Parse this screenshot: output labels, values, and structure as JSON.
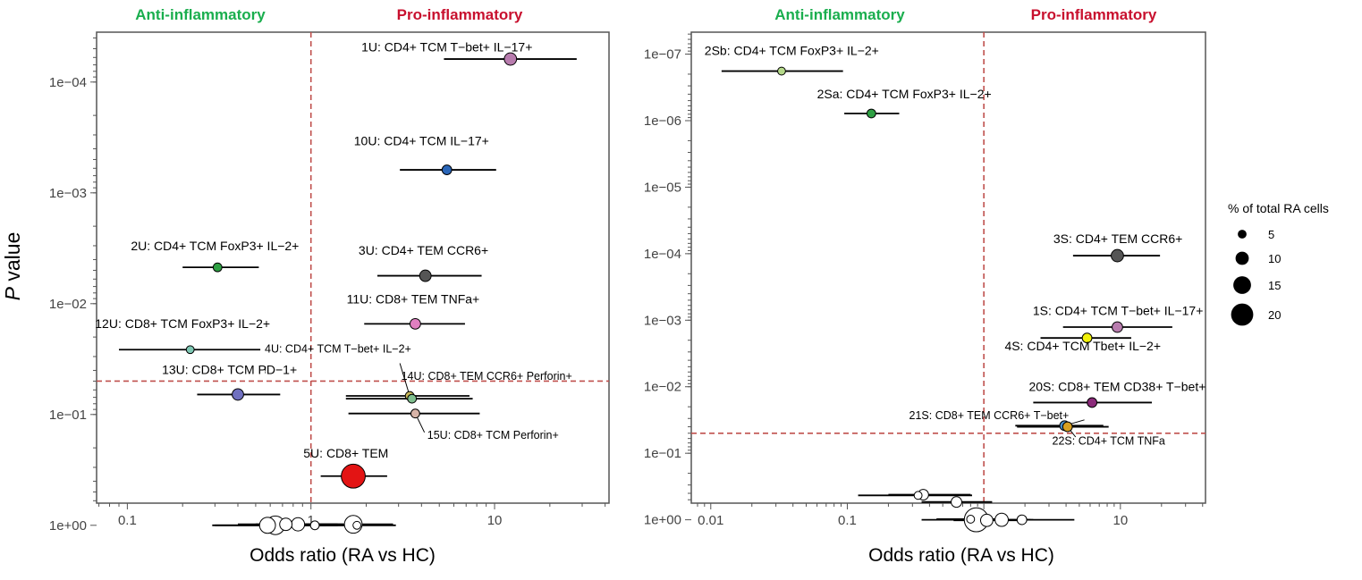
{
  "colors": {
    "anti": "#1aae4e",
    "pro": "#c8102e",
    "threshold": "#c0504d",
    "axis": "#555555",
    "tick_text": "#444444"
  },
  "y_axis_title_italic": "P",
  "y_axis_title_rest": " value",
  "legend": {
    "title": "% of total RA cells",
    "sizes": [
      5,
      10,
      15,
      20
    ],
    "labels": [
      "5",
      "10",
      "15",
      "20"
    ]
  },
  "chart_data": [
    {
      "type": "scatter",
      "panel": "left",
      "header_left": "Anti-inflammatory",
      "header_right": "Pro-inflammatory",
      "xlabel": "Odds ratio (RA vs HC)",
      "ylabel": "P value",
      "x_scale": "log",
      "y_scale": "log-reversed",
      "xlim": [
        0.068,
        42
      ],
      "ylim_log10": [
        0.2,
        4.45
      ],
      "x_ticks": [
        0.1,
        1,
        10
      ],
      "x_tick_labels": [
        "0.1",
        "1",
        "10"
      ],
      "y_ticks_log10": [
        0,
        1,
        2,
        3,
        4
      ],
      "y_tick_labels": [
        "1e+00",
        "1e−01",
        "1e−02",
        "1e−03",
        "1e−04"
      ],
      "threshold_x": 1,
      "threshold_p": 0.05,
      "points": [
        {
          "label": "1U: CD4+ TCM T−bet+ IL−17+",
          "or": 12.2,
          "lo": 5.3,
          "hi": 28,
          "p": 6.2e-05,
          "size": 9,
          "color": "#b87cae",
          "label_or": 5.5,
          "label_p": 5.3e-05,
          "anchor": "middle"
        },
        {
          "label": "10U: CD4+ TCM IL−17+",
          "or": 5.5,
          "lo": 3.05,
          "hi": 10.2,
          "p": 0.00062,
          "size": 6,
          "color": "#2a66b8",
          "label_or": 4.0,
          "label_p": 0.00037,
          "anchor": "middle"
        },
        {
          "label": "2U: CD4+ TCM FoxP3+ IL−2+",
          "or": 0.31,
          "lo": 0.2,
          "hi": 0.52,
          "p": 0.0047,
          "size": 5,
          "color": "#2ea043",
          "label_or": 0.3,
          "label_p": 0.0033,
          "anchor": "middle"
        },
        {
          "label": "3U: CD4+ TEM CCR6+",
          "or": 4.2,
          "lo": 2.3,
          "hi": 8.5,
          "p": 0.0056,
          "size": 8,
          "color": "#555555",
          "label_or": 4.1,
          "label_p": 0.0036,
          "anchor": "middle"
        },
        {
          "label": "11U: CD8+ TEM TNFa+",
          "or": 3.7,
          "lo": 1.95,
          "hi": 6.9,
          "p": 0.0152,
          "size": 7,
          "color": "#e07fc0",
          "label_or": 3.6,
          "label_p": 0.0099,
          "anchor": "middle"
        },
        {
          "label": "12U: CD8+ TCM FoxP3+ IL−2+",
          "or": 0.22,
          "lo": 0.09,
          "hi": 0.53,
          "p": 0.026,
          "size": 4,
          "color": "#7ec8b4",
          "label_or": 0.2,
          "label_p": 0.0165,
          "anchor": "middle"
        },
        {
          "label": "13U: CD8+ TCM PD−1+",
          "or": 0.4,
          "lo": 0.24,
          "hi": 0.68,
          "p": 0.066,
          "size": 8,
          "color": "#7070c0",
          "label_or": 0.36,
          "label_p": 0.043,
          "anchor": "middle"
        },
        {
          "label": "4U: CD4+ TCM T−bet+ IL−2+",
          "or": 3.45,
          "lo": 1.55,
          "hi": 7.3,
          "p": 0.068,
          "size": 5,
          "color": "#c8b75a",
          "label_or": 0.56,
          "label_p": 0.0275,
          "anchor": "start"
        },
        {
          "label": "14U: CD8+ TEM CCR6+ Perforin+",
          "or": 3.55,
          "lo": 1.55,
          "hi": 7.6,
          "p": 0.072,
          "size": 5,
          "color": "#7fbf8f",
          "label_or": 3.1,
          "label_p": 0.0485,
          "anchor": "start"
        },
        {
          "label": "15U: CD8+ TCM Perforin+",
          "or": 3.7,
          "lo": 1.6,
          "hi": 8.3,
          "p": 0.098,
          "size": 5,
          "color": "#d8b4a8",
          "label_or": 4.3,
          "label_p": 0.165,
          "anchor": "start"
        },
        {
          "label": "5U: CD8+ TEM",
          "or": 1.7,
          "lo": 1.13,
          "hi": 2.6,
          "p": 0.36,
          "size": 22,
          "color": "#e31414",
          "label_or": 1.55,
          "label_p": 0.245,
          "anchor": "middle"
        },
        {
          "label": "",
          "or": 0.64,
          "lo": 0.29,
          "hi": 1.4,
          "p": 1.0,
          "size": 16,
          "color": "#ffffff"
        },
        {
          "label": "",
          "or": 0.58,
          "lo": 0.3,
          "hi": 1.2,
          "p": 1.0,
          "size": 13,
          "color": "#ffffff"
        },
        {
          "label": "",
          "or": 0.73,
          "lo": 0.4,
          "hi": 1.4,
          "p": 0.98,
          "size": 9,
          "color": "#ffffff"
        },
        {
          "label": "",
          "or": 0.85,
          "lo": 0.5,
          "hi": 1.5,
          "p": 0.98,
          "size": 10,
          "color": "#ffffff"
        },
        {
          "label": "",
          "or": 1.05,
          "lo": 0.6,
          "hi": 1.8,
          "p": 1.0,
          "size": 5,
          "color": "#ffffff"
        },
        {
          "label": "",
          "or": 1.7,
          "lo": 0.9,
          "hi": 2.8,
          "p": 0.98,
          "size": 15,
          "color": "#ffffff"
        },
        {
          "label": "",
          "or": 1.78,
          "lo": 1.0,
          "hi": 2.9,
          "p": 1.0,
          "size": 4,
          "color": "#ffffff"
        }
      ],
      "pointer_lines": [
        {
          "from_or": 3.05,
          "from_p": 0.0345,
          "to_or": 3.45,
          "to_p": 0.068
        },
        {
          "from_or": 4.15,
          "from_p": 0.145,
          "to_or": 3.7,
          "to_p": 0.098
        }
      ],
      "annotations": [
        {
          "text": "!",
          "or": 0.565,
          "p": 0.0425
        }
      ]
    },
    {
      "type": "scatter",
      "panel": "right",
      "header_left": "Anti-inflammatory",
      "header_right": "Pro-inflammatory",
      "xlabel": "Odds ratio (RA vs HC)",
      "ylabel": "P value",
      "x_scale": "log",
      "y_scale": "log-reversed",
      "xlim": [
        0.0072,
        42
      ],
      "ylim_log10": [
        0.25,
        7.33
      ],
      "x_ticks": [
        0.01,
        0.1,
        1,
        10
      ],
      "x_tick_labels": [
        "0.01",
        "0.1",
        "1",
        "10"
      ],
      "y_ticks_log10": [
        0,
        1,
        2,
        3,
        4,
        5,
        6,
        7
      ],
      "y_tick_labels": [
        "1e+00",
        "1e−01",
        "1e−02",
        "1e−03",
        "1e−04",
        "1e−05",
        "1e−06",
        "1e−07"
      ],
      "threshold_x": 1,
      "threshold_p": 0.05,
      "points": [
        {
          "label": "2Sb: CD4+ TCM FoxP3+ IL−2+",
          "or": 0.033,
          "lo": 0.012,
          "hi": 0.093,
          "p": 1.8e-07,
          "size": 4,
          "color": "#b5d98a",
          "label_or": 0.009,
          "label_p": 1.03e-07,
          "anchor": "start"
        },
        {
          "label": "2Sa: CD4+ TCM FoxP3+ IL−2+",
          "or": 0.15,
          "lo": 0.095,
          "hi": 0.24,
          "p": 7.8e-07,
          "size": 5,
          "color": "#2ea043",
          "label_or": 0.06,
          "label_p": 4.6e-07,
          "anchor": "start"
        },
        {
          "label": "3S: CD4+ TEM CCR6+",
          "or": 9.5,
          "lo": 4.5,
          "hi": 19.5,
          "p": 0.000107,
          "size": 9,
          "color": "#555555",
          "label_or": 9.6,
          "label_p": 6.95e-05,
          "anchor": "middle"
        },
        {
          "label": "1S: CD4+ TCM T−bet+ IL−17+",
          "or": 9.5,
          "lo": 3.8,
          "hi": 24,
          "p": 0.00127,
          "size": 7,
          "color": "#b87cae",
          "label_or": 9.6,
          "label_p": 0.00083,
          "anchor": "middle"
        },
        {
          "label": "4S: CD4+ TCM Tbet+ IL−2+",
          "or": 5.7,
          "lo": 2.6,
          "hi": 12,
          "p": 0.00185,
          "size": 6,
          "color": "#f2f20a",
          "label_or": 5.3,
          "label_p": 0.00285,
          "anchor": "middle"
        },
        {
          "label": "20S: CD8+ TEM CD38+ T−bet+",
          "or": 6.2,
          "lo": 2.3,
          "hi": 17,
          "p": 0.0173,
          "size": 6,
          "color": "#8b2a7a",
          "label_or": 9.5,
          "label_p": 0.0116,
          "anchor": "middle"
        },
        {
          "label": "21S: CD8+ TEM CCR6+ T−bet+",
          "or": 3.9,
          "lo": 1.7,
          "hi": 7.5,
          "p": 0.0385,
          "size": 6,
          "color": "#4a8fc8",
          "label_or": 4.2,
          "label_p": 0.0305,
          "anchor": "end"
        },
        {
          "label": "22S: CD4+ TCM TNFa",
          "or": 4.1,
          "lo": 1.75,
          "hi": 8.2,
          "p": 0.04,
          "size": 6,
          "color": "#d8a020",
          "label_or": 8.2,
          "label_p": 0.0745,
          "anchor": "middle"
        },
        {
          "label": "",
          "or": 0.33,
          "lo": 0.12,
          "hi": 0.82,
          "p": 0.43,
          "size": 4,
          "color": "#ffffff"
        },
        {
          "label": "",
          "or": 0.36,
          "lo": 0.2,
          "hi": 0.8,
          "p": 0.42,
          "size": 7,
          "color": "#ffffff"
        },
        {
          "label": "",
          "or": 0.63,
          "lo": 0.35,
          "hi": 1.15,
          "p": 0.54,
          "size": 7,
          "color": "#ffffff"
        },
        {
          "label": "",
          "or": 0.8,
          "lo": 0.45,
          "hi": 1.3,
          "p": 0.98,
          "size": 4,
          "color": "#ffffff"
        },
        {
          "label": "",
          "or": 0.88,
          "lo": 0.35,
          "hi": 2.2,
          "p": 1.0,
          "size": 22,
          "color": "#ffffff"
        },
        {
          "label": "",
          "or": 1.05,
          "lo": 0.6,
          "hi": 1.8,
          "p": 1.02,
          "size": 9,
          "color": "#ffffff"
        },
        {
          "label": "",
          "or": 1.35,
          "lo": 0.8,
          "hi": 2.3,
          "p": 1.0,
          "size": 10,
          "color": "#ffffff"
        },
        {
          "label": "",
          "or": 1.9,
          "lo": 0.9,
          "hi": 4.6,
          "p": 1.0,
          "size": 6,
          "color": "#ffffff"
        }
      ],
      "pointer_lines": [
        {
          "from_or": 5.45,
          "from_p": 0.0315,
          "to_or": 3.9,
          "to_p": 0.0385
        },
        {
          "from_or": 4.7,
          "from_p": 0.057,
          "to_or": 4.1,
          "to_p": 0.04
        }
      ],
      "annotations": []
    }
  ]
}
